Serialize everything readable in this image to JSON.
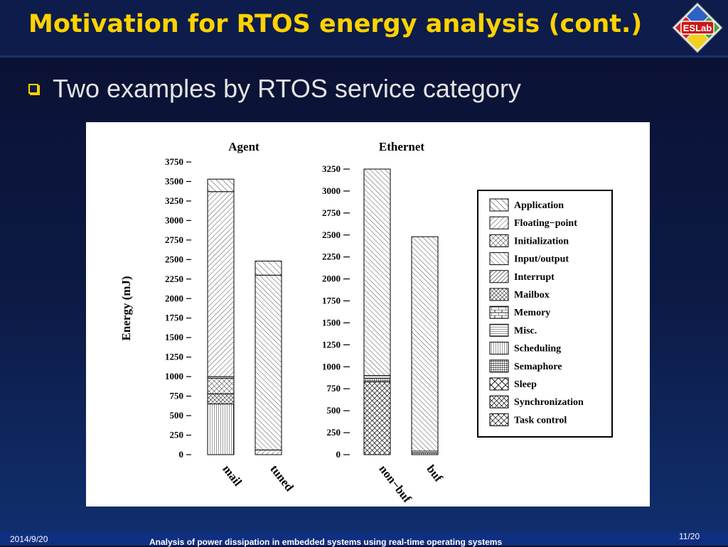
{
  "slide": {
    "title": "Motivation for RTOS energy analysis (cont.)",
    "logo_text": "ESLab",
    "bullet": "Two examples by RTOS service category",
    "footer": {
      "date": "2014/9/20",
      "title": "Analysis of power dissipation in embedded systems using real-time operating systems",
      "page": "11/20"
    }
  },
  "colors": {
    "title": "#ffd200",
    "bullet_text": "#e4e4e4",
    "background": "#0d1a45",
    "footer_bar": "#0f2f82"
  },
  "chart_data": [
    {
      "type": "bar",
      "stacked": true,
      "title": "Agent",
      "ylabel": "Energy (mJ)",
      "ylim": [
        0,
        3750
      ],
      "yticks": [
        0,
        250,
        500,
        750,
        1000,
        1250,
        1500,
        1750,
        2000,
        2250,
        2500,
        2750,
        3000,
        3250,
        3500,
        3750
      ],
      "categories": [
        "mail",
        "tuned"
      ],
      "series": [
        {
          "name": "Scheduling",
          "values": [
            650,
            0
          ]
        },
        {
          "name": "Mailbox",
          "values": [
            130,
            0
          ]
        },
        {
          "name": "Initialization",
          "values": [
            200,
            0
          ]
        },
        {
          "name": "Misc.",
          "values": [
            20,
            0
          ]
        },
        {
          "name": "Floating-point",
          "values": [
            2370,
            60
          ]
        },
        {
          "name": "Input/output",
          "values": [
            0,
            2240
          ]
        },
        {
          "name": "Application",
          "values": [
            160,
            180
          ]
        }
      ]
    },
    {
      "type": "bar",
      "stacked": true,
      "title": "Ethernet",
      "ylim": [
        0,
        3250
      ],
      "yticks": [
        0,
        250,
        500,
        750,
        1000,
        1250,
        1500,
        1750,
        2000,
        2250,
        2500,
        2750,
        3000,
        3250
      ],
      "categories": [
        "non-buf",
        "buf"
      ],
      "series": [
        {
          "name": "Synchronization",
          "values": [
            830,
            0
          ]
        },
        {
          "name": "Semaphore",
          "values": [
            40,
            20
          ]
        },
        {
          "name": "Misc.",
          "values": [
            30,
            20
          ]
        },
        {
          "name": "Input/output",
          "values": [
            2350,
            2440
          ]
        }
      ]
    }
  ],
  "legend": [
    {
      "name": "Application",
      "pattern": "p-app"
    },
    {
      "name": "Floating−point",
      "pattern": "p-fp"
    },
    {
      "name": "Initialization",
      "pattern": "p-init"
    },
    {
      "name": "Input/output",
      "pattern": "p-io"
    },
    {
      "name": "Interrupt",
      "pattern": "p-int"
    },
    {
      "name": "Mailbox",
      "pattern": "p-mbox"
    },
    {
      "name": "Memory",
      "pattern": "p-mem"
    },
    {
      "name": "Misc.",
      "pattern": "p-misc"
    },
    {
      "name": "Scheduling",
      "pattern": "p-sched"
    },
    {
      "name": "Semaphore",
      "pattern": "p-sem"
    },
    {
      "name": "Sleep",
      "pattern": "p-sleep"
    },
    {
      "name": "Synchronization",
      "pattern": "p-sync"
    },
    {
      "name": "Task control",
      "pattern": "p-task"
    }
  ],
  "category_labels": {
    "mail": "mail",
    "tuned": "tuned",
    "non-buf": "non−buf",
    "buf": "buf"
  }
}
